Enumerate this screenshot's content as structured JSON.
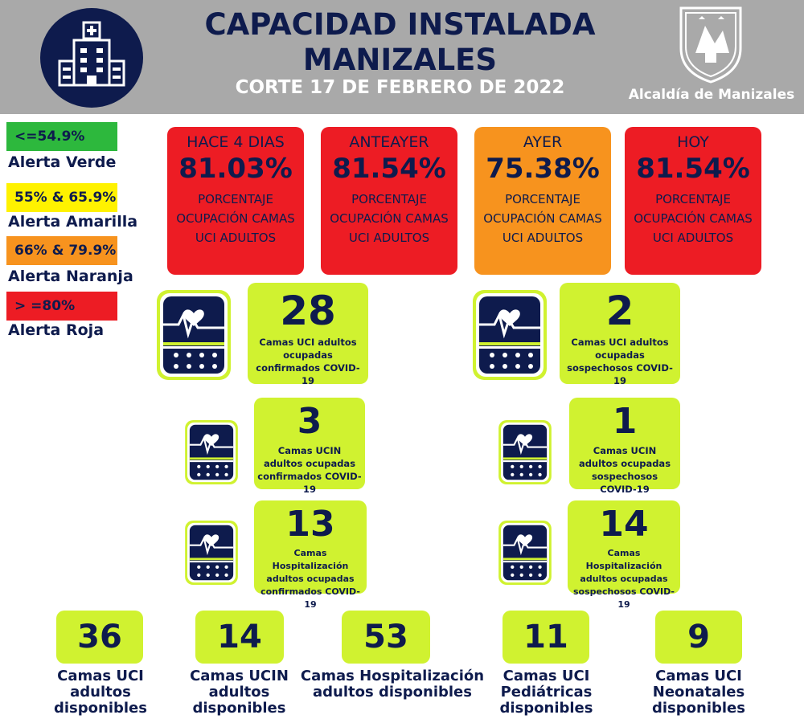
{
  "header": {
    "title_line1": "CAPACIDAD INSTALADA",
    "title_line2": "MANIZALES",
    "subtitle": "CORTE 17 DE FEBRERO DE 2022",
    "org_name": "Alcaldía de Manizales",
    "logo_icon": "hospital-building-icon",
    "crest_icon": "city-crest-icon"
  },
  "legend": [
    {
      "range": "<=54.9%",
      "label": "Alerta Verde",
      "color": "#2db83d"
    },
    {
      "range": "55% & 65.9%",
      "label": "Alerta Amarilla",
      "color": "#fff200"
    },
    {
      "range": "66% & 79.9%",
      "label": "Alerta Naranja",
      "color": "#f7931e"
    },
    {
      "range": "> =80%",
      "label": "Alerta Roja",
      "color": "#ed1c24"
    }
  ],
  "occupancy": [
    {
      "period": "HACE 4 DIAS",
      "value": "81.03%",
      "desc": "PORCENTAJE OCUPACIÓN CAMAS UCI ADULTOS",
      "color": "#ed1c24"
    },
    {
      "period": "ANTEAYER",
      "value": "81.54%",
      "desc": "PORCENTAJE OCUPACIÓN CAMAS UCI ADULTOS",
      "color": "#ed1c24"
    },
    {
      "period": "AYER",
      "value": "75.38%",
      "desc": "PORCENTAJE OCUPACIÓN CAMAS UCI ADULTOS",
      "color": "#f7931e"
    },
    {
      "period": "HOY",
      "value": "81.54%",
      "desc": "PORCENTAJE OCUPACIÓN CAMAS UCI ADULTOS",
      "color": "#ed1c24"
    }
  ],
  "covid_stats": {
    "uci_confirmados": {
      "value": "28",
      "desc": "Camas UCI adultos ocupadas confirmados COVID-19"
    },
    "uci_sospechosos": {
      "value": "2",
      "desc": "Camas UCI adultos ocupadas sospechosos COVID-19"
    },
    "ucin_confirmados": {
      "value": "3",
      "desc": "Camas UCIN adultos ocupadas confirmados COVID-19"
    },
    "ucin_sospechosos": {
      "value": "1",
      "desc": "Camas UCIN adultos ocupadas sospechosos COVID-19"
    },
    "hosp_confirmados": {
      "value": "13",
      "desc": "Camas Hospitalización adultos ocupadas confirmados COVID-19"
    },
    "hosp_sospechosos": {
      "value": "14",
      "desc": "Camas Hospitalización adultos ocupadas sospechosos COVID-19"
    }
  },
  "available": [
    {
      "value": "36",
      "label": "Camas UCI adultos disponibles"
    },
    {
      "value": "14",
      "label": "Camas UCIN adultos disponibles"
    },
    {
      "value": "53",
      "label": "Camas Hospitalización adultos disponibles"
    },
    {
      "value": "11",
      "label": "Camas UCI Pediátricas disponibles"
    },
    {
      "value": "9",
      "label": "Camas UCI Neonatales disponibles"
    }
  ],
  "monitor_icon": "heart-monitor-icon"
}
